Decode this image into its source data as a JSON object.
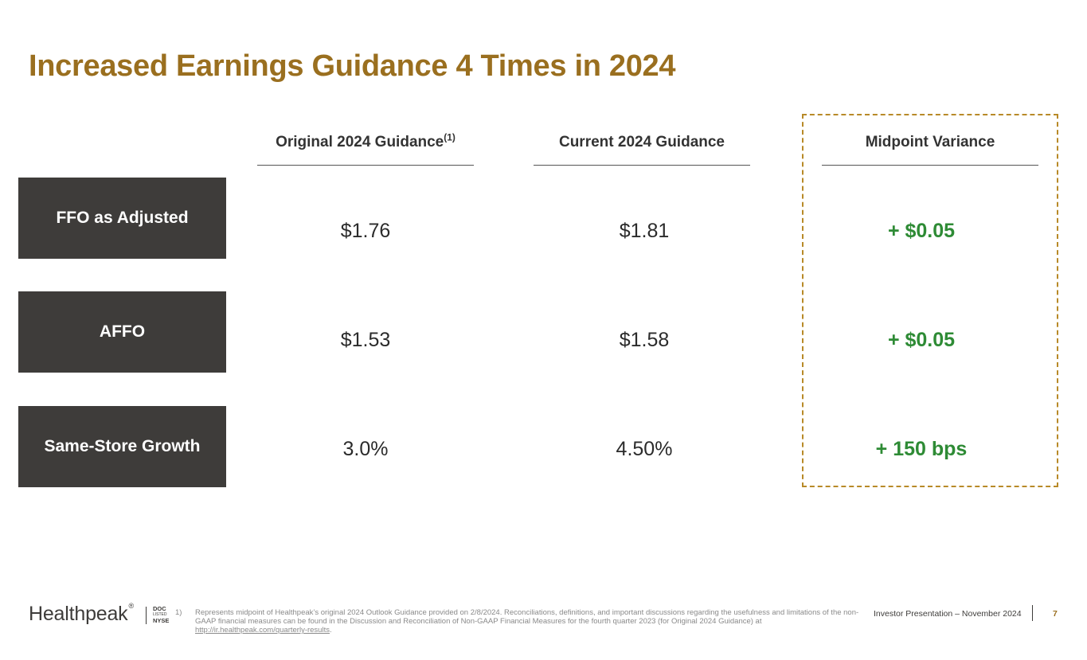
{
  "slide": {
    "title": "Increased Earnings Guidance 4 Times in 2024",
    "page_number": "7",
    "presentation": "Investor Presentation – November 2024"
  },
  "columns": {
    "original": "Original 2024 Guidance",
    "original_sup": "(1)",
    "current": "Current 2024 Guidance",
    "variance": "Midpoint Variance"
  },
  "rows": [
    {
      "label": "FFO as Adjusted",
      "original": "$1.76",
      "current": "$1.81",
      "variance": "+ $0.05"
    },
    {
      "label": "AFFO",
      "original": "$1.53",
      "current": "$1.58",
      "variance": "+ $0.05"
    },
    {
      "label": "Same-Store Growth",
      "original": "3.0%",
      "current": "4.50%",
      "variance": "+ 150 bps"
    }
  ],
  "footer": {
    "logo_text": "Healthpeak",
    "logo_mark": "®",
    "ticker_line1": "DOC",
    "ticker_line2": "LISTED",
    "ticker_line3": "NYSE",
    "footnote_number": "1)",
    "footnote_text": "Represents midpoint of Healthpeak’s original 2024 Outlook Guidance provided on 2/8/2024. Reconciliations, definitions, and important discussions regarding the usefulness and limitations of the non-GAAP financial measures can be found in the Discussion and Reconciliation of Non-GAAP Financial Measures for the fourth quarter 2023 (for Original 2024 Guidance) at",
    "footnote_link": "http://ir.healthpeak.com/quarterly-results",
    "footnote_end": "."
  },
  "colors": {
    "title": "#9a6f1f",
    "row_label_bg": "#3e3c3a",
    "variance_text": "#2e8b35",
    "highlight_border": "#b88a28"
  }
}
